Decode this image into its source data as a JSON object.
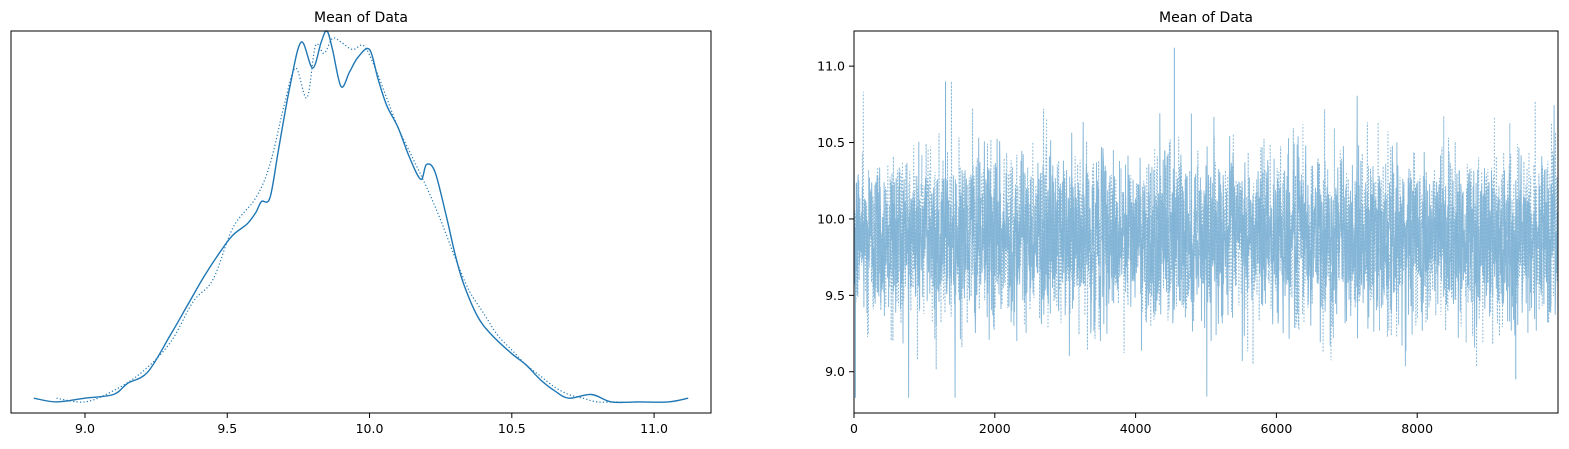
{
  "chart_data": [
    {
      "type": "line",
      "title": "Mean of Data",
      "xlabel": "",
      "ylabel": "",
      "xlim": [
        8.74,
        11.2
      ],
      "ylim": [
        -0.03,
        1.0
      ],
      "x_ticks": [
        9.0,
        9.5,
        10.0,
        10.5,
        11.0
      ],
      "x_tick_labels": [
        "9.0",
        "9.5",
        "10.0",
        "10.5",
        "11.0"
      ],
      "y_ticks_visible": false,
      "color": "#1f77b4",
      "series": [
        {
          "style": "solid",
          "x": [
            8.82,
            8.9,
            9.0,
            9.1,
            9.15,
            9.22,
            9.3,
            9.36,
            9.42,
            9.48,
            9.52,
            9.57,
            9.6,
            9.62,
            9.65,
            9.68,
            9.72,
            9.76,
            9.8,
            9.83,
            9.85,
            9.87,
            9.9,
            9.93,
            9.96,
            10.0,
            10.03,
            10.06,
            10.1,
            10.14,
            10.18,
            10.2,
            10.23,
            10.27,
            10.3,
            10.33,
            10.38,
            10.43,
            10.5,
            10.55,
            10.6,
            10.65,
            10.7,
            10.78,
            10.85,
            10.95,
            11.05,
            11.12
          ],
          "y": [
            0.01,
            0.0,
            0.01,
            0.02,
            0.05,
            0.08,
            0.18,
            0.26,
            0.34,
            0.41,
            0.45,
            0.48,
            0.51,
            0.54,
            0.55,
            0.68,
            0.85,
            0.97,
            0.9,
            0.97,
            1.0,
            0.95,
            0.85,
            0.89,
            0.93,
            0.95,
            0.87,
            0.8,
            0.74,
            0.66,
            0.6,
            0.64,
            0.62,
            0.5,
            0.4,
            0.32,
            0.23,
            0.18,
            0.13,
            0.1,
            0.06,
            0.03,
            0.01,
            0.02,
            0.0,
            0.0,
            0.0,
            0.01
          ]
        },
        {
          "style": "dotted",
          "x": [
            8.9,
            9.0,
            9.1,
            9.2,
            9.3,
            9.38,
            9.45,
            9.52,
            9.6,
            9.65,
            9.7,
            9.74,
            9.78,
            9.81,
            9.84,
            9.87,
            9.9,
            9.94,
            9.98,
            10.02,
            10.06,
            10.1,
            10.15,
            10.2,
            10.25,
            10.3,
            10.35,
            10.4,
            10.45,
            10.5,
            10.55,
            10.6,
            10.65,
            10.7,
            10.75,
            10.8,
            10.87
          ],
          "y": [
            0.01,
            0.0,
            0.03,
            0.08,
            0.16,
            0.27,
            0.33,
            0.47,
            0.55,
            0.64,
            0.8,
            0.9,
            0.82,
            0.96,
            0.94,
            0.98,
            0.97,
            0.95,
            0.96,
            0.9,
            0.82,
            0.74,
            0.66,
            0.58,
            0.49,
            0.39,
            0.3,
            0.24,
            0.18,
            0.14,
            0.1,
            0.07,
            0.04,
            0.02,
            0.01,
            0.0,
            0.0
          ]
        }
      ]
    },
    {
      "type": "line",
      "title": "Mean of Data",
      "xlabel": "",
      "ylabel": "",
      "xlim": [
        0,
        10000
      ],
      "ylim": [
        8.73,
        11.23
      ],
      "x_ticks": [
        0,
        2000,
        4000,
        6000,
        8000
      ],
      "x_tick_labels": [
        "0",
        "2000",
        "4000",
        "6000",
        "8000"
      ],
      "y_ticks": [
        9.0,
        9.5,
        10.0,
        10.5,
        11.0
      ],
      "y_tick_labels": [
        "9.0",
        "9.5",
        "10.0",
        "10.5",
        "11.0"
      ],
      "color": "#7fb3d5",
      "series": [
        {
          "style": "solid",
          "mean": 9.88,
          "sd": 0.27,
          "min": 8.83,
          "max": 11.12,
          "n_samples": 10000
        },
        {
          "style": "dotted",
          "mean": 9.88,
          "sd": 0.27,
          "min": 8.95,
          "max": 10.9,
          "n_samples": 10000
        }
      ]
    }
  ]
}
